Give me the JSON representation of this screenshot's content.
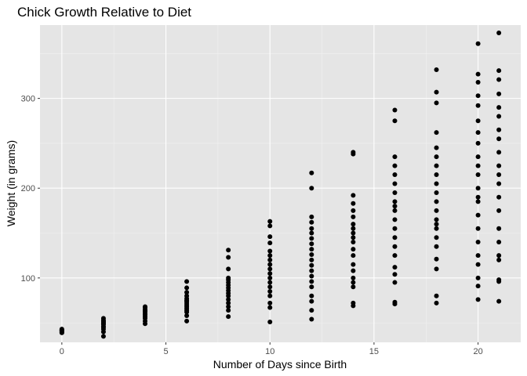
{
  "chart_data": {
    "type": "scatter",
    "title": "Chick Growth Relative to Diet",
    "xlabel": "Number of Days since Birth",
    "ylabel": "Weight (in grams)",
    "xlim": [
      -1.05,
      22.05
    ],
    "ylim": [
      28.3,
      381.7
    ],
    "x_ticks": [
      0,
      5,
      10,
      15,
      20
    ],
    "y_ticks": [
      100,
      200,
      300
    ],
    "x_tick_labels": [
      "0",
      "5",
      "10",
      "15",
      "20"
    ],
    "y_tick_labels": [
      "100",
      "200",
      "300"
    ],
    "grid": true,
    "panel_background": "#e5e5e5",
    "point_color": "#000000",
    "x": [
      0,
      0,
      0,
      0,
      0,
      0,
      0,
      0,
      0,
      0,
      2,
      2,
      2,
      2,
      2,
      2,
      2,
      2,
      2,
      2,
      2,
      2,
      4,
      4,
      4,
      4,
      4,
      4,
      4,
      4,
      4,
      4,
      4,
      4,
      6,
      6,
      6,
      6,
      6,
      6,
      6,
      6,
      6,
      6,
      6,
      6,
      6,
      6,
      6,
      8,
      8,
      8,
      8,
      8,
      8,
      8,
      8,
      8,
      8,
      8,
      8,
      8,
      8,
      8,
      8,
      10,
      10,
      10,
      10,
      10,
      10,
      10,
      10,
      10,
      10,
      10,
      10,
      10,
      10,
      10,
      10,
      10,
      10,
      12,
      12,
      12,
      12,
      12,
      12,
      12,
      12,
      12,
      12,
      12,
      12,
      12,
      12,
      12,
      12,
      12,
      12,
      12,
      12,
      14,
      14,
      14,
      14,
      14,
      14,
      14,
      14,
      14,
      14,
      14,
      14,
      14,
      14,
      14,
      14,
      14,
      14,
      14,
      14,
      16,
      16,
      16,
      16,
      16,
      16,
      16,
      16,
      16,
      16,
      16,
      16,
      16,
      16,
      16,
      16,
      16,
      16,
      16,
      16,
      18,
      18,
      18,
      18,
      18,
      18,
      18,
      18,
      18,
      18,
      18,
      18,
      18,
      18,
      18,
      18,
      18,
      18,
      18,
      18,
      18,
      20,
      20,
      20,
      20,
      20,
      20,
      20,
      20,
      20,
      20,
      20,
      20,
      20,
      20,
      20,
      20,
      20,
      20,
      20,
      20,
      20,
      20,
      21,
      21,
      21,
      21,
      21,
      21,
      21,
      21,
      21,
      21,
      21,
      21,
      21,
      21,
      21,
      21,
      21,
      21,
      21,
      21,
      21
    ],
    "y": [
      39,
      40,
      41,
      41,
      42,
      42,
      42,
      43,
      41,
      39,
      35,
      40,
      43,
      45,
      46,
      48,
      49,
      50,
      51,
      52,
      53,
      55,
      49,
      52,
      55,
      57,
      59,
      60,
      62,
      63,
      64,
      65,
      67,
      68,
      52,
      58,
      62,
      64,
      66,
      68,
      70,
      72,
      74,
      75,
      77,
      80,
      84,
      89,
      96,
      57,
      64,
      68,
      72,
      76,
      80,
      83,
      86,
      89,
      92,
      95,
      98,
      100,
      110,
      123,
      131,
      51,
      67,
      72,
      80,
      85,
      90,
      95,
      100,
      105,
      110,
      115,
      120,
      125,
      130,
      139,
      146,
      158,
      163,
      54,
      64,
      74,
      80,
      90,
      96,
      102,
      108,
      114,
      120,
      126,
      132,
      138,
      144,
      150,
      155,
      162,
      168,
      200,
      217,
      69,
      72,
      90,
      95,
      100,
      108,
      115,
      125,
      132,
      140,
      145,
      150,
      155,
      160,
      168,
      175,
      183,
      192,
      238,
      240,
      71,
      73,
      95,
      104,
      112,
      125,
      135,
      145,
      155,
      165,
      175,
      185,
      195,
      205,
      215,
      225,
      235,
      275,
      287,
      180,
      72,
      80,
      110,
      121,
      135,
      145,
      155,
      160,
      165,
      175,
      185,
      195,
      205,
      215,
      225,
      235,
      245,
      262,
      295,
      307,
      332,
      76,
      91,
      100,
      115,
      125,
      140,
      155,
      170,
      185,
      200,
      215,
      225,
      235,
      250,
      262,
      275,
      292,
      303,
      318,
      327,
      361,
      190,
      74,
      96,
      98,
      120,
      125,
      140,
      155,
      175,
      190,
      205,
      215,
      225,
      240,
      255,
      265,
      280,
      290,
      305,
      321,
      331,
      373
    ]
  }
}
